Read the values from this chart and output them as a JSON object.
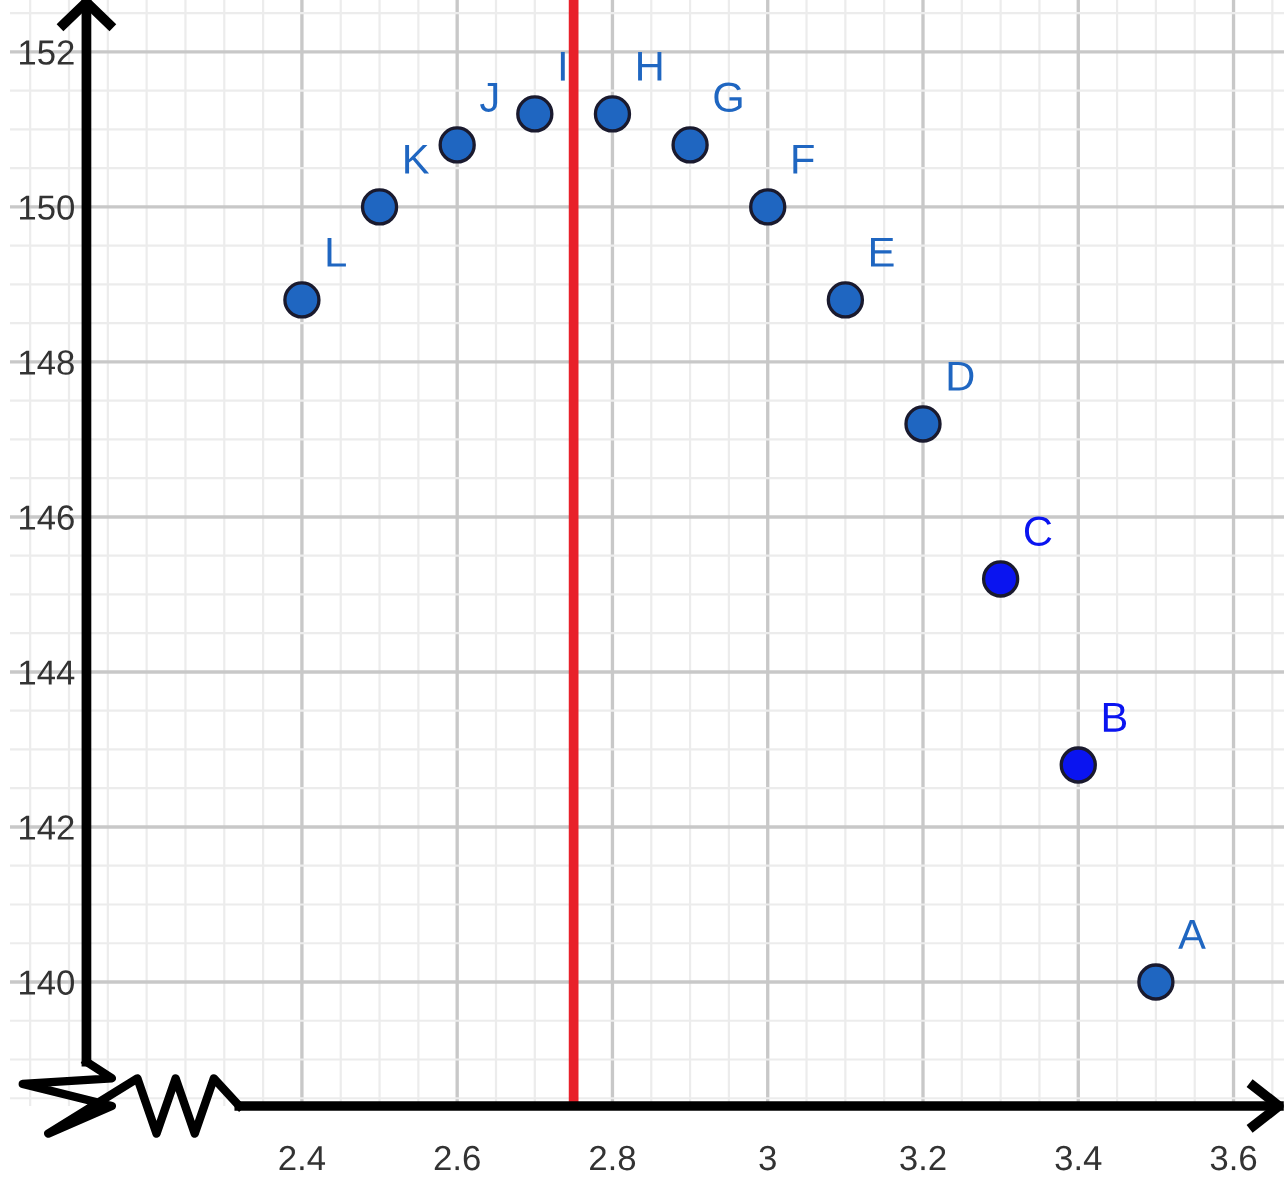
{
  "chart_data": {
    "type": "scatter",
    "x": [
      3.5,
      3.4,
      3.3,
      3.2,
      3.1,
      3.0,
      2.9,
      2.8,
      2.7,
      2.6,
      2.5,
      2.4
    ],
    "values": [
      140,
      142.8,
      145.2,
      147.2,
      148.8,
      150,
      150.8,
      151.2,
      151.2,
      150.8,
      150,
      148.8
    ],
    "colors": [
      "#1f66c1",
      "#0a14f0",
      "#0a14f0",
      "#1f66c1",
      "#1f66c1",
      "#1f66c1",
      "#1f66c1",
      "#1f66c1",
      "#1f66c1",
      "#1f66c1",
      "#1f66c1",
      "#1f66c1"
    ],
    "marker": "circle",
    "annotations": [
      {
        "text": "A",
        "x": 3.5,
        "y": 140
      },
      {
        "text": "B",
        "x": 3.4,
        "y": 142.8
      },
      {
        "text": "C",
        "x": 3.3,
        "y": 145.2
      },
      {
        "text": "D",
        "x": 3.2,
        "y": 147.2
      },
      {
        "text": "E",
        "x": 3.1,
        "y": 148.8
      },
      {
        "text": "F",
        "x": 3.0,
        "y": 150
      },
      {
        "text": "G",
        "x": 2.9,
        "y": 150.8
      },
      {
        "text": "H",
        "x": 2.8,
        "y": 151.2
      },
      {
        "text": "I",
        "x": 2.7,
        "y": 151.2
      },
      {
        "text": "J",
        "x": 2.6,
        "y": 150.8
      },
      {
        "text": "K",
        "x": 2.5,
        "y": 150
      },
      {
        "text": "L",
        "x": 2.4,
        "y": 148.8
      }
    ],
    "ref_lines": [
      {
        "axis": "x",
        "value": 2.75,
        "color": "#e8202a"
      }
    ],
    "xlim": [
      2.024,
      3.665
    ],
    "ylim": [
      138.4,
      152.67
    ],
    "xticks": [
      2.4,
      2.6,
      2.8,
      3,
      3.2,
      3.4,
      3.6
    ],
    "yticks": [
      140,
      142,
      144,
      146,
      148,
      150,
      152
    ],
    "grid": true
  }
}
